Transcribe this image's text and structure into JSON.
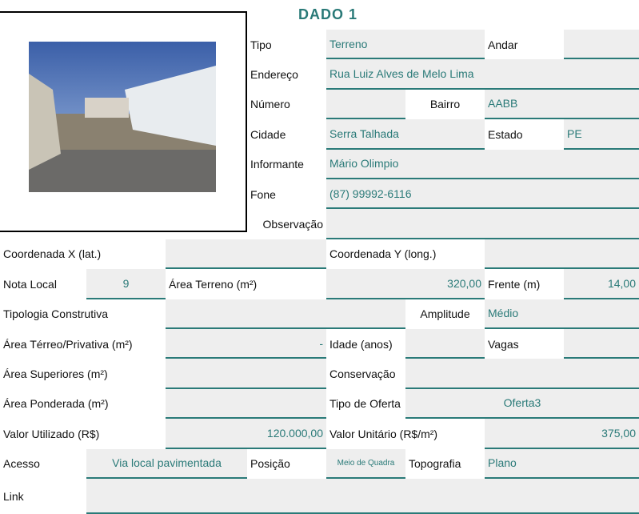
{
  "title": "DADO 1",
  "labels": {
    "tipo": "Tipo",
    "andar": "Andar",
    "endereco": "Endereço",
    "numero": "Número",
    "bairro": "Bairro",
    "cidade": "Cidade",
    "estado": "Estado",
    "informante": "Informante",
    "fone": "Fone",
    "observacao": "Observação",
    "coord_x": "Coordenada X (lat.)",
    "coord_y": "Coordenada Y (long.)",
    "nota_local": "Nota Local",
    "area_terreno": "Área Terreno (m²)",
    "frente": "Frente (m)",
    "tipologia": "Tipologia Construtiva",
    "amplitude": "Amplitude",
    "area_terreo": "Área Térreo/Privativa (m²)",
    "idade": "Idade (anos)",
    "vagas": "Vagas",
    "area_superiores": "Área Superiores (m²)",
    "conservacao": "Conservação",
    "area_ponderada": "Área Ponderada (m²)",
    "tipo_oferta": "Tipo de Oferta",
    "valor_utilizado": "Valor Utilizado (R$)",
    "valor_unitario": "Valor Unitário (R$/m²)",
    "acesso": "Acesso",
    "posicao": "Posição",
    "topografia": "Topografia",
    "link": "Link"
  },
  "values": {
    "tipo": "Terreno",
    "endereco": "Rua Luiz Alves de Melo Lima",
    "bairro": "AABB",
    "cidade": "Serra Talhada",
    "estado": "PE",
    "informante": "Mário Olimpio",
    "fone": "(87) 99992-6116",
    "nota_local": "9",
    "area_terreno": "320,00",
    "frente": "14,00",
    "amplitude": "Médio",
    "area_terreo": "-",
    "tipo_oferta": "Oferta3",
    "valor_utilizado": "120.000,00",
    "valor_unitario": "375,00",
    "acesso": "Via local pavimentada",
    "posicao": "Meio de Quadra",
    "topografia": "Plano"
  }
}
